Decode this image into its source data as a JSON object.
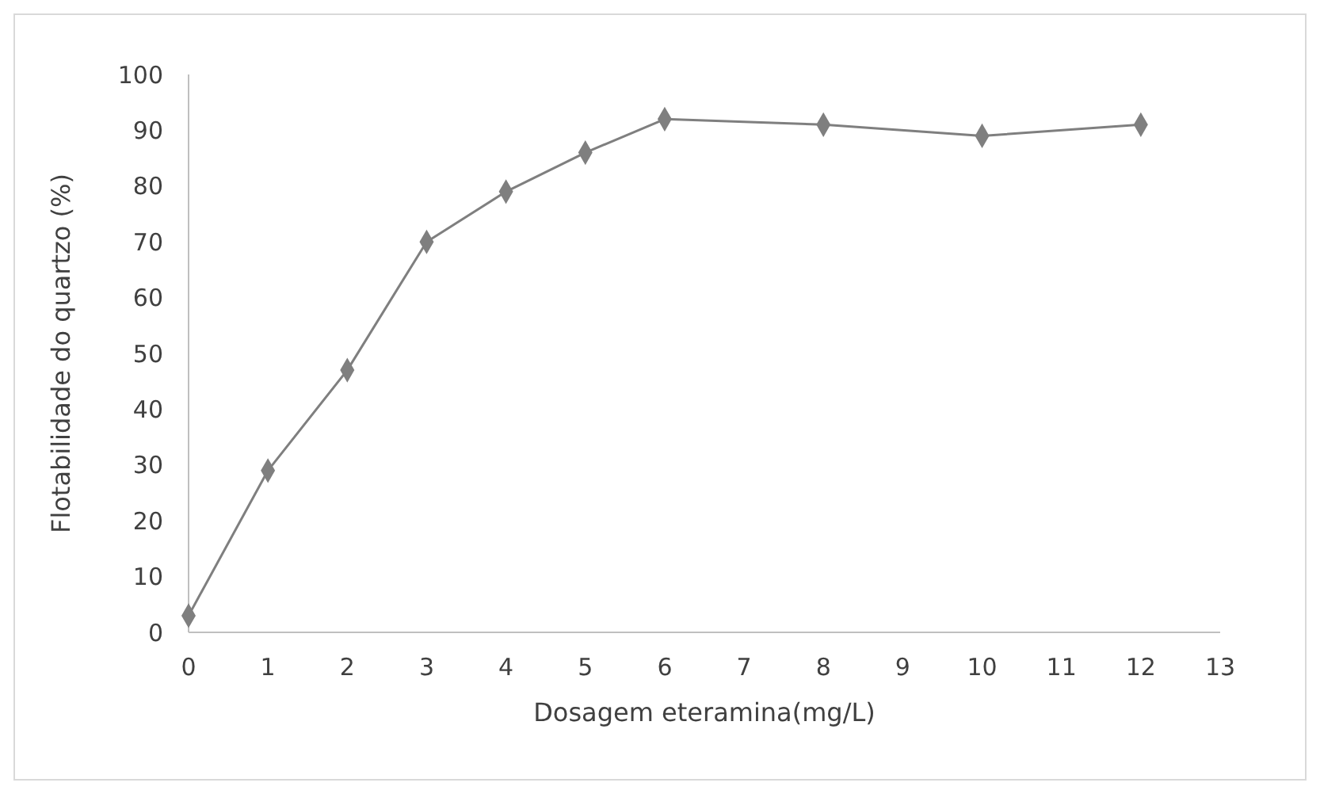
{
  "chart_data": {
    "type": "line",
    "xlabel": "Dosagem eteramina(mg/L)",
    "ylabel": "Flotabilidade do quartzo (%)",
    "x": [
      0,
      1,
      2,
      3,
      4,
      5,
      6,
      8,
      10,
      12
    ],
    "series": [
      {
        "color": "#7f7f7f",
        "values": [
          3,
          29,
          47,
          70,
          79,
          86,
          92,
          91,
          89,
          91
        ]
      }
    ],
    "xlim": [
      0,
      13
    ],
    "xticks": [
      0,
      1,
      2,
      3,
      4,
      5,
      6,
      7,
      8,
      9,
      10,
      11,
      12,
      13
    ],
    "ylim": [
      0,
      100
    ],
    "yticks": [
      0,
      10,
      20,
      30,
      40,
      50,
      60,
      70,
      80,
      90,
      100
    ],
    "grid": false,
    "marker": "diamond",
    "line_style": "solid"
  }
}
